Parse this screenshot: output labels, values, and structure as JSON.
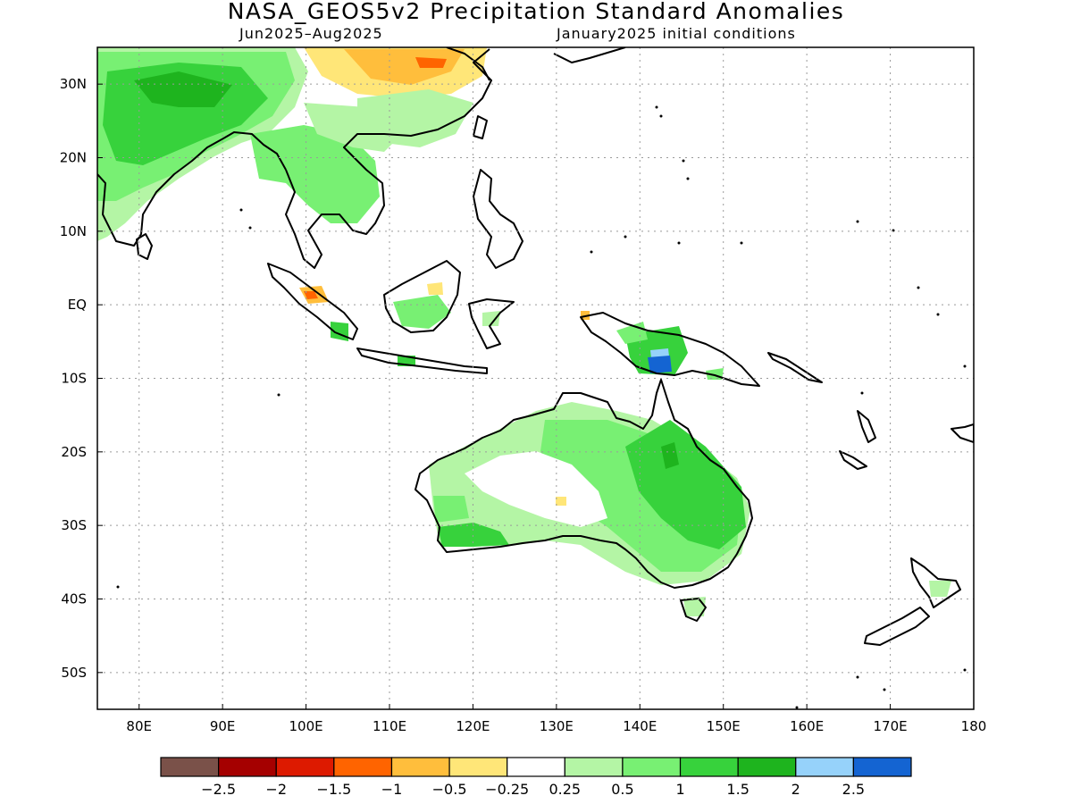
{
  "title": "NASA_GEOS5v2 Precipitation Standard Anomalies",
  "subtitle_left": "Jun2025–Aug2025",
  "subtitle_right": "January2025 initial conditions",
  "map": {
    "lon_range": [
      75,
      180
    ],
    "lat_range": [
      -55,
      35
    ],
    "lon_ticks": [
      {
        "v": 80,
        "label": "80E"
      },
      {
        "v": 90,
        "label": "90E"
      },
      {
        "v": 100,
        "label": "100E"
      },
      {
        "v": 110,
        "label": "110E"
      },
      {
        "v": 120,
        "label": "120E"
      },
      {
        "v": 130,
        "label": "130E"
      },
      {
        "v": 140,
        "label": "140E"
      },
      {
        "v": 150,
        "label": "150E"
      },
      {
        "v": 160,
        "label": "160E"
      },
      {
        "v": 170,
        "label": "170E"
      },
      {
        "v": 180,
        "label": "180"
      }
    ],
    "lat_ticks": [
      {
        "v": 30,
        "label": "30N"
      },
      {
        "v": 20,
        "label": "20N"
      },
      {
        "v": 10,
        "label": "10N"
      },
      {
        "v": 0,
        "label": "EQ"
      },
      {
        "v": -10,
        "label": "10S"
      },
      {
        "v": -20,
        "label": "20S"
      },
      {
        "v": -30,
        "label": "30S"
      },
      {
        "v": -40,
        "label": "40S"
      },
      {
        "v": -50,
        "label": "50S"
      }
    ],
    "grid": "dotted"
  },
  "colorbar": {
    "colors": [
      "#7a5149",
      "#a50000",
      "#dd1a00",
      "#ff6400",
      "#ffbe3c",
      "#ffe678",
      "#ffffff",
      "#b4f5a5",
      "#78f073",
      "#37d23c",
      "#1eb41e",
      "#96d2fa",
      "#1464d2"
    ],
    "labels": [
      "−2.5",
      "−2",
      "−1.5",
      "−1",
      "−0.5",
      "−0.25",
      "0.25",
      "0.5",
      "1",
      "1.5",
      "2",
      "2.5"
    ]
  }
}
